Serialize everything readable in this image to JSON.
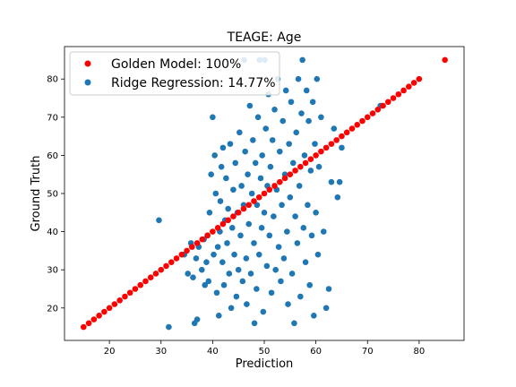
{
  "chart_data": {
    "type": "scatter",
    "title": "TEAGE: Age",
    "xlabel": "Prediction",
    "ylabel": "Ground Truth",
    "xlim": [
      11.3,
      88.7
    ],
    "ylim": [
      11.5,
      88.5
    ],
    "xticks": [
      20,
      30,
      40,
      50,
      60,
      70,
      80
    ],
    "yticks": [
      20,
      30,
      40,
      50,
      60,
      70,
      80
    ],
    "legend_position": "top-left",
    "series": [
      {
        "name": "Golden Model: 100%",
        "color": "#ff0000",
        "marker": "circle",
        "points": [
          [
            15,
            15
          ],
          [
            16,
            16
          ],
          [
            17,
            17
          ],
          [
            18,
            18
          ],
          [
            19,
            19
          ],
          [
            20,
            20
          ],
          [
            21,
            21
          ],
          [
            22,
            22
          ],
          [
            23,
            23
          ],
          [
            24,
            24
          ],
          [
            25,
            25
          ],
          [
            26,
            26
          ],
          [
            27,
            27
          ],
          [
            28,
            28
          ],
          [
            29,
            29
          ],
          [
            30,
            30
          ],
          [
            31,
            31
          ],
          [
            32,
            32
          ],
          [
            33,
            33
          ],
          [
            34,
            34
          ],
          [
            35,
            35
          ],
          [
            36,
            36
          ],
          [
            37,
            37
          ],
          [
            38,
            38
          ],
          [
            39,
            39
          ],
          [
            40,
            40
          ],
          [
            41,
            41
          ],
          [
            42,
            42
          ],
          [
            43,
            43
          ],
          [
            44,
            44
          ],
          [
            45,
            45
          ],
          [
            46,
            46
          ],
          [
            47,
            47
          ],
          [
            48,
            48
          ],
          [
            49,
            49
          ],
          [
            50,
            50
          ],
          [
            51,
            51
          ],
          [
            52,
            52
          ],
          [
            53,
            53
          ],
          [
            54,
            54
          ],
          [
            55,
            55
          ],
          [
            56,
            56
          ],
          [
            57,
            57
          ],
          [
            58,
            58
          ],
          [
            59,
            59
          ],
          [
            60,
            60
          ],
          [
            61,
            61
          ],
          [
            62,
            62
          ],
          [
            63,
            63
          ],
          [
            64,
            64
          ],
          [
            65,
            65
          ],
          [
            66,
            66
          ],
          [
            67,
            67
          ],
          [
            68,
            68
          ],
          [
            69,
            69
          ],
          [
            70,
            70
          ],
          [
            71,
            71
          ],
          [
            72,
            72
          ],
          [
            73,
            73
          ],
          [
            74,
            74
          ],
          [
            75,
            75
          ],
          [
            76,
            76
          ],
          [
            77,
            77
          ],
          [
            78,
            78
          ],
          [
            79,
            79
          ],
          [
            80,
            80
          ],
          [
            85,
            85
          ]
        ]
      },
      {
        "name": "Ridge Regression: 14.77%",
        "color": "#1f77b4",
        "marker": "circle",
        "points": [
          [
            29.6,
            43
          ],
          [
            31.5,
            15
          ],
          [
            34.5,
            34
          ],
          [
            35.2,
            29
          ],
          [
            35.8,
            37
          ],
          [
            36.2,
            28
          ],
          [
            36.5,
            16
          ],
          [
            36.8,
            33
          ],
          [
            37,
            17
          ],
          [
            37.3,
            36
          ],
          [
            37.9,
            30
          ],
          [
            38.3,
            38
          ],
          [
            38.5,
            26
          ],
          [
            38.8,
            32
          ],
          [
            39,
            39
          ],
          [
            39.2,
            27
          ],
          [
            39.4,
            45
          ],
          [
            39.7,
            55
          ],
          [
            40,
            70
          ],
          [
            40.2,
            34
          ],
          [
            40.4,
            60
          ],
          [
            40.6,
            50
          ],
          [
            40.8,
            24
          ],
          [
            41,
            36
          ],
          [
            41.2,
            18
          ],
          [
            41.4,
            40
          ],
          [
            41.5,
            48
          ],
          [
            41.7,
            57
          ],
          [
            41.9,
            32
          ],
          [
            42,
            62
          ],
          [
            42.2,
            26
          ],
          [
            42.4,
            43
          ],
          [
            42.6,
            54
          ],
          [
            42.8,
            37
          ],
          [
            43,
            46
          ],
          [
            43.2,
            29
          ],
          [
            43.4,
            63
          ],
          [
            43.6,
            20
          ],
          [
            43.8,
            41
          ],
          [
            44,
            51
          ],
          [
            44.2,
            34
          ],
          [
            44.4,
            58
          ],
          [
            44.6,
            23
          ],
          [
            44.8,
            45
          ],
          [
            45,
            30
          ],
          [
            45.2,
            66
          ],
          [
            45.4,
            39
          ],
          [
            45.6,
            52
          ],
          [
            45.8,
            27
          ],
          [
            46,
            47
          ],
          [
            46.1,
            85
          ],
          [
            46.3,
            61
          ],
          [
            46.5,
            33
          ],
          [
            46.6,
            21
          ],
          [
            46.8,
            55
          ],
          [
            47,
            42
          ],
          [
            47.2,
            73
          ],
          [
            47.4,
            29
          ],
          [
            47.6,
            50
          ],
          [
            47.8,
            64
          ],
          [
            48,
            37
          ],
          [
            48.1,
            16
          ],
          [
            48.3,
            58
          ],
          [
            48.5,
            25
          ],
          [
            48.6,
            47
          ],
          [
            48.8,
            70
          ],
          [
            49,
            34
          ],
          [
            49.1,
            85
          ],
          [
            49.3,
            54
          ],
          [
            49.5,
            41
          ],
          [
            49.6,
            60
          ],
          [
            49.8,
            19
          ],
          [
            50,
            45
          ],
          [
            50.1,
            85
          ],
          [
            50.3,
            67
          ],
          [
            50.5,
            31
          ],
          [
            50.6,
            52
          ],
          [
            50.8,
            76
          ],
          [
            51,
            39
          ],
          [
            51.2,
            57
          ],
          [
            51.4,
            24
          ],
          [
            51.6,
            64
          ],
          [
            51.8,
            44
          ],
          [
            52,
            72
          ],
          [
            52.2,
            30
          ],
          [
            52.4,
            51
          ],
          [
            52.6,
            80
          ],
          [
            52.8,
            36
          ],
          [
            53,
            61
          ],
          [
            53.2,
            27
          ],
          [
            53.4,
            47
          ],
          [
            53.6,
            69
          ],
          [
            53.8,
            33
          ],
          [
            54,
            55
          ],
          [
            54.2,
            77
          ],
          [
            54.4,
            40
          ],
          [
            54.6,
            21
          ],
          [
            54.8,
            63
          ],
          [
            55,
            49
          ],
          [
            55.2,
            74
          ],
          [
            55.4,
            29
          ],
          [
            55.6,
            58
          ],
          [
            55.8,
            16
          ],
          [
            56,
            44
          ],
          [
            56.2,
            66
          ],
          [
            56.4,
            37
          ],
          [
            56.6,
            80
          ],
          [
            56.8,
            52
          ],
          [
            57,
            23
          ],
          [
            57.2,
            71
          ],
          [
            57.4,
            85
          ],
          [
            57.6,
            41
          ],
          [
            57.8,
            60
          ],
          [
            58,
            32
          ],
          [
            58.2,
            77
          ],
          [
            58.4,
            47
          ],
          [
            58.6,
            69
          ],
          [
            58.8,
            26
          ],
          [
            59,
            56
          ],
          [
            59.2,
            39
          ],
          [
            59.4,
            74
          ],
          [
            59.6,
            18
          ],
          [
            59.8,
            63
          ],
          [
            60,
            45
          ],
          [
            60.2,
            80
          ],
          [
            60.4,
            34
          ],
          [
            60.6,
            57
          ],
          [
            61,
            70
          ],
          [
            61.5,
            40
          ],
          [
            62,
            20
          ],
          [
            62.5,
            25
          ],
          [
            63,
            53
          ],
          [
            63.5,
            67
          ],
          [
            64.2,
            49
          ],
          [
            64.6,
            53
          ],
          [
            65,
            62
          ],
          [
            72.5,
            73
          ]
        ]
      }
    ]
  }
}
